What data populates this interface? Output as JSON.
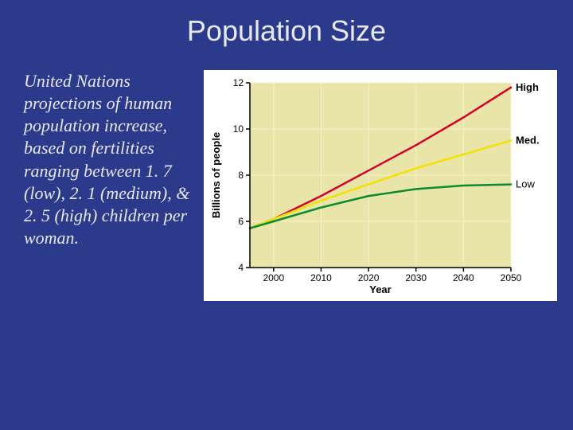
{
  "title": "Population Size",
  "title_fontsize": 36,
  "caption": "United Nations projections of human population increase, based on fertilities ranging between 1. 7 (low), 2. 1 (medium), & 2. 5 (high) children per woman.",
  "caption_fontsize": 22,
  "chart": {
    "type": "line",
    "background_color": "#e9e4a8",
    "plot_bg_color": "#e9e4a8",
    "outer_bg_color": "#ffffff",
    "xlabel": "Year",
    "ylabel": "Billions of people",
    "label_fontsize": 13,
    "label_color": "#000000",
    "xlim": [
      1995,
      2050
    ],
    "ylim": [
      4,
      12
    ],
    "xtick_start": 2000,
    "xtick_step": 10,
    "ytick_start": 4,
    "ytick_step": 2,
    "tick_fontsize": 12,
    "tick_color": "#000000",
    "grid_color": "#f5f2d0",
    "axis_line_color": "#000000",
    "series": [
      {
        "name": "High",
        "label": "High",
        "color": "#d4002a",
        "line_width": 2.5,
        "label_weight": "bold",
        "x": [
          1995,
          2000,
          2010,
          2020,
          2030,
          2040,
          2050
        ],
        "y": [
          5.7,
          6.1,
          7.1,
          8.2,
          9.3,
          10.5,
          11.8
        ]
      },
      {
        "name": "Med.",
        "label": "Med.",
        "color": "#f2e200",
        "line_width": 2.5,
        "label_weight": "bold",
        "x": [
          1995,
          2000,
          2010,
          2020,
          2030,
          2040,
          2050
        ],
        "y": [
          5.7,
          6.1,
          6.9,
          7.6,
          8.3,
          8.9,
          9.5
        ]
      },
      {
        "name": "Low",
        "label": "Low",
        "color": "#0b8a2f",
        "line_width": 2.5,
        "label_weight": "normal",
        "x": [
          1995,
          2000,
          2010,
          2020,
          2030,
          2040,
          2050
        ],
        "y": [
          5.7,
          6.0,
          6.6,
          7.1,
          7.4,
          7.55,
          7.6
        ]
      }
    ]
  }
}
